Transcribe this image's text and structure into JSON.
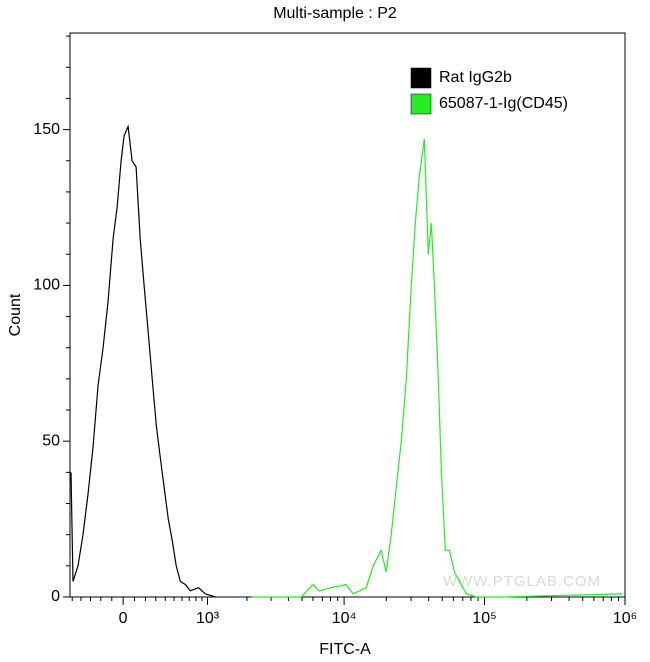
{
  "chart_data": {
    "type": "line",
    "title": "Multi-sample : P2",
    "x_label": "FITC-A",
    "y_label": "Count",
    "watermark": "WWW.PTGLAB.COM",
    "xscale": "biexponential",
    "xlim": [
      -527,
      1000000
    ],
    "ylim": [
      0,
      181
    ],
    "xticks": [
      0,
      {
        "value": 1000,
        "label": "10³"
      },
      {
        "value": 10000,
        "label": "10⁴"
      },
      {
        "value": 100000,
        "label": "10⁵"
      },
      {
        "value": 1000000,
        "label": "10⁶"
      }
    ],
    "xminorticks": [
      -500,
      -400,
      -300,
      -200,
      -100,
      100,
      200,
      300,
      400,
      500,
      600,
      700,
      800,
      900,
      2000,
      3000,
      4000,
      5000,
      6000,
      7000,
      8000,
      9000,
      20000,
      30000,
      40000,
      50000,
      60000,
      70000,
      80000,
      90000,
      200000,
      300000,
      400000,
      500000,
      600000,
      700000,
      800000,
      900000
    ],
    "yticks": [
      0,
      50,
      100,
      150
    ],
    "yminorticks": [
      10,
      20,
      30,
      40,
      60,
      70,
      80,
      90,
      110,
      120,
      130,
      140,
      160,
      170,
      180
    ],
    "legend": "top-right",
    "series": [
      {
        "name": "Rat IgG2b",
        "color": "#000000",
        "x": [
          -515,
          -491,
          -433,
          -378,
          -325,
          -275,
          -226,
          -179,
          -133,
          -88,
          -53,
          -18,
          9,
          44,
          79,
          115,
          152,
          188,
          226,
          265,
          305,
          346,
          388,
          433,
          479,
          527,
          578,
          645,
          717,
          842,
          961,
          1159
        ],
        "values": [
          40,
          5,
          10,
          20,
          33,
          48,
          68,
          80,
          95,
          115,
          125,
          140,
          148,
          151,
          140,
          138,
          115,
          100,
          85,
          70,
          55,
          45,
          35,
          25,
          18,
          10,
          5,
          4,
          2,
          3,
          1,
          0
        ]
      },
      {
        "name": "65087-1-Ig(CD45)",
        "color": "#22ee22",
        "x": [
          2168,
          4932,
          6010,
          6622,
          8072,
          10334,
          11596,
          14363,
          16118,
          18365,
          19953,
          21667,
          23520,
          25546,
          27733,
          30130,
          32135,
          34356,
          37239,
          39811,
          41783,
          43954,
          46881,
          49317,
          52602,
          56234,
          61094,
          66222,
          74302,
          87700,
          132130,
          952000
        ],
        "values": [
          0,
          0,
          4,
          2,
          3,
          4,
          1,
          3,
          10,
          15,
          8,
          20,
          35,
          50,
          70,
          100,
          120,
          135,
          147,
          110,
          120,
          100,
          70,
          40,
          15,
          15,
          8,
          5,
          1,
          0,
          0,
          1
        ]
      }
    ]
  }
}
